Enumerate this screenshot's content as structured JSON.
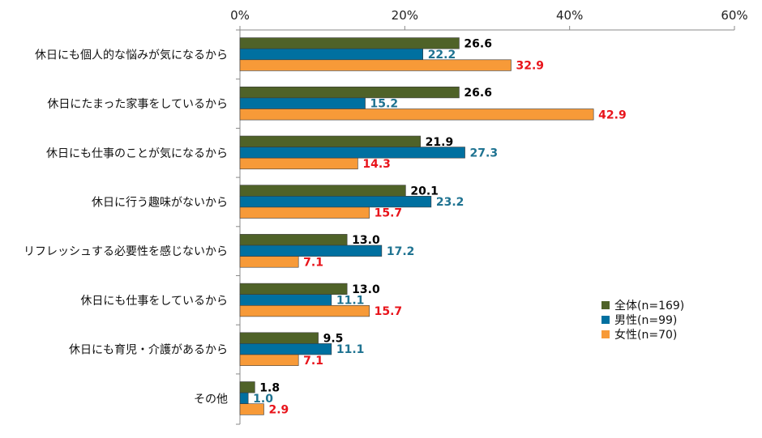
{
  "chart_data": {
    "type": "bar",
    "orientation": "horizontal",
    "title": "",
    "xlabel": "",
    "ylabel": "",
    "xlim": [
      0,
      60
    ],
    "x_ticks": [
      0,
      20,
      40,
      60
    ],
    "tick_labels": [
      "0%",
      "20%",
      "40%",
      "60%"
    ],
    "tick_position": "top",
    "grid": false,
    "legend_position": "right",
    "categories": [
      "休日にも個人的な悩みが気になるから",
      "休日にたまった家事をしているから",
      "休日にも仕事のことが気になるから",
      "休日に行う趣味がないから",
      "リフレッシュする必要性を感じないから",
      "休日にも仕事をしているから",
      "休日にも育児・介護があるから",
      "その他"
    ],
    "series": [
      {
        "name": "全体(n=169)",
        "color": "#4f6228",
        "label_color": "#000000",
        "values": [
          26.6,
          26.6,
          21.9,
          20.1,
          13.0,
          13.0,
          9.5,
          1.8
        ],
        "labels": [
          "26.6",
          "26.6",
          "21.9",
          "20.1",
          "13.0",
          "13.0",
          "9.5",
          "1.8"
        ]
      },
      {
        "name": "男性(n=99)",
        "color": "#0070a0",
        "label_color": "#1f7391",
        "values": [
          22.2,
          15.2,
          27.3,
          23.2,
          17.2,
          11.1,
          11.1,
          1.0
        ],
        "labels": [
          "22.2",
          "15.2",
          "27.3",
          "23.2",
          "17.2",
          "11.1",
          "11.1",
          "1.0"
        ]
      },
      {
        "name": "女性(n=70)",
        "color": "#f79a38",
        "label_color": "#e8141b",
        "values": [
          32.9,
          42.9,
          14.3,
          15.7,
          7.1,
          15.7,
          7.1,
          2.9
        ],
        "labels": [
          "32.9",
          "42.9",
          "14.3",
          "15.7",
          "7.1",
          "15.7",
          "7.1",
          "2.9"
        ]
      }
    ]
  }
}
